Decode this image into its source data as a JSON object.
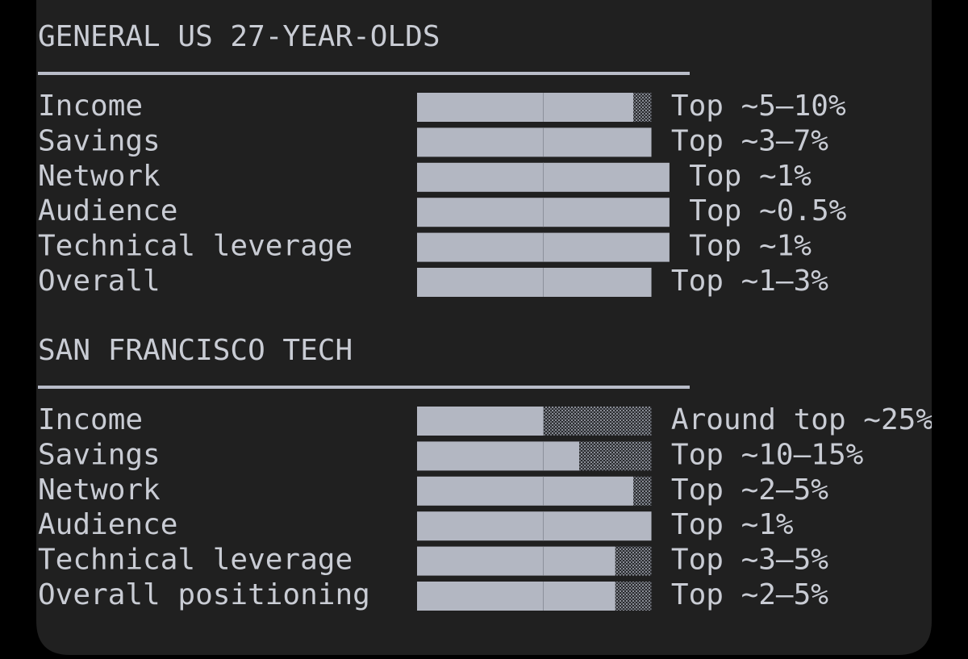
{
  "sections": [
    {
      "title": "GENERAL US 27-YEAR-OLDS",
      "rows": [
        {
          "label": "Income",
          "filled": 12,
          "shaded": 1,
          "rank": "Top ~5–10%"
        },
        {
          "label": "Savings",
          "filled": 13,
          "shaded": 0,
          "rank": "Top ~3–7%"
        },
        {
          "label": "Network",
          "filled": 14,
          "shaded": 0,
          "rank": "Top ~1%"
        },
        {
          "label": "Audience",
          "filled": 14,
          "shaded": 0,
          "rank": "Top ~0.5%"
        },
        {
          "label": "Technical leverage",
          "filled": 14,
          "shaded": 0,
          "rank": "Top ~1%"
        },
        {
          "label": "Overall",
          "filled": 13,
          "shaded": 0,
          "rank": "Top ~1–3%"
        }
      ]
    },
    {
      "title": "SAN FRANCISCO TECH",
      "rows": [
        {
          "label": "Income",
          "filled": 7,
          "shaded": 6,
          "rank": "Around top ~25%"
        },
        {
          "label": "Savings",
          "filled": 9,
          "shaded": 4,
          "rank": "Top ~10–15%"
        },
        {
          "label": "Network",
          "filled": 12,
          "shaded": 1,
          "rank": "Top ~2–5%"
        },
        {
          "label": "Audience",
          "filled": 13,
          "shaded": 0,
          "rank": "Top ~1%"
        },
        {
          "label": "Technical leverage",
          "filled": 11,
          "shaded": 2,
          "rank": "Top ~3–5%"
        },
        {
          "label": "Overall positioning",
          "filled": 11,
          "shaded": 2,
          "rank": "Top ~2–5%"
        }
      ]
    }
  ]
}
